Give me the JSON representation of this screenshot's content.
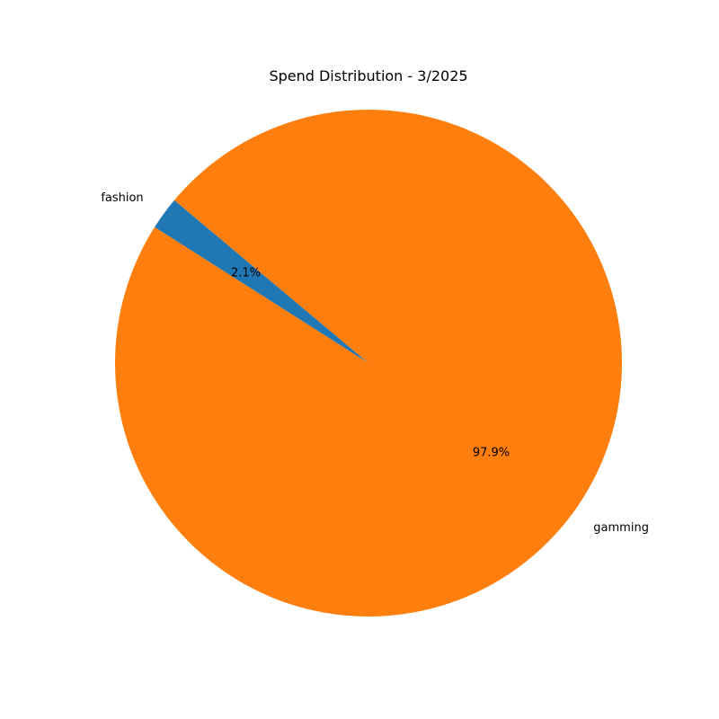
{
  "chart_data": {
    "type": "pie",
    "title": "Spend Distribution - 3/2025",
    "categories": [
      "fashion",
      "gamming"
    ],
    "values": [
      2.1,
      97.9
    ],
    "percent_labels": [
      "2.1%",
      "97.9%"
    ],
    "colors": [
      "#1f77b4",
      "#ff7f0e"
    ],
    "start_angle_deg": 140,
    "direction": "counterclockwise",
    "legend": "none"
  }
}
